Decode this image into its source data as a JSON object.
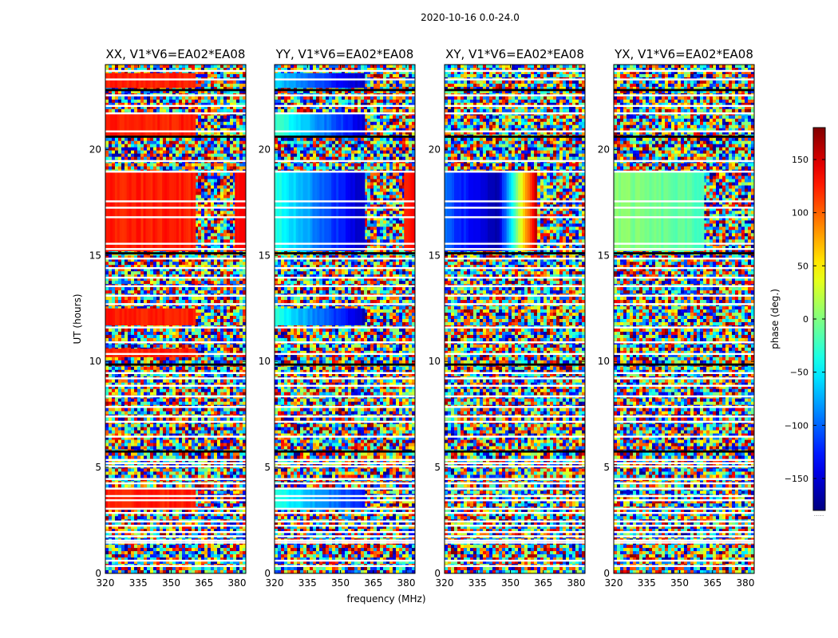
{
  "chart_data": {
    "type": "heatmap",
    "suptitle": "2020-10-16 0.0-24.0",
    "xlabel": "frequency (MHz)",
    "ylabel": "UT (hours)",
    "colorbar_label": "phase (deg.)",
    "colormap": "jet",
    "xlim": [
      320,
      384
    ],
    "ylim": [
      0,
      24
    ],
    "xticks": [
      320,
      335,
      350,
      365,
      380
    ],
    "yticks": [
      0,
      5,
      10,
      15,
      20
    ],
    "clim": [
      -180,
      180
    ],
    "cticks": [
      -150,
      -100,
      -50,
      0,
      50,
      100,
      150
    ],
    "cticklabels": [
      "−150",
      "−100",
      "−50",
      "0",
      "50",
      "100",
      "150"
    ],
    "colorbar_footer": ".....",
    "flagged_rows_hours": [
      0.35,
      0.6,
      1.45,
      1.55,
      1.75,
      1.95,
      2.25,
      2.45,
      2.85,
      3.05,
      3.45,
      3.65,
      4.0,
      4.25,
      4.45,
      5.05,
      5.2,
      5.35,
      5.75,
      6.45,
      7.15,
      7.4,
      7.85,
      8.35,
      8.85,
      9.2,
      9.45,
      10.35,
      10.9,
      11.6,
      12.7,
      13.1,
      13.55,
      13.95,
      14.4,
      14.85,
      15.3,
      15.55,
      16.8,
      17.25,
      17.55,
      18.95,
      19.45,
      20.85,
      21.7,
      22.05,
      22.55,
      23.3,
      23.7
    ],
    "black_rows_hours": [
      5.75,
      9.85,
      15.1,
      20.6,
      22.8
    ],
    "panels": [
      {
        "title": "XX, V1*V6=EA02*EA08",
        "coherent_blocks": [
          {
            "t0": 15.2,
            "t1": 19.0,
            "f0": 320,
            "f1": 361,
            "phase_start": 125,
            "phase_end": 125
          },
          {
            "t0": 11.7,
            "t1": 12.5,
            "f0": 320,
            "f1": 361,
            "phase_start": 125,
            "phase_end": 125
          },
          {
            "t0": 20.6,
            "t1": 21.7,
            "f0": 320,
            "f1": 361,
            "phase_start": 125,
            "phase_end": 125
          },
          {
            "t0": 22.9,
            "t1": 23.6,
            "f0": 320,
            "f1": 361,
            "phase_start": 125,
            "phase_end": 125
          },
          {
            "t0": 3.0,
            "t1": 4.0,
            "f0": 320,
            "f1": 361,
            "phase_start": 125,
            "phase_end": 125
          },
          {
            "t0": 10.2,
            "t1": 10.6,
            "f0": 320,
            "f1": 361,
            "phase_start": 125,
            "phase_end": 125
          },
          {
            "t0": 15.2,
            "t1": 19.0,
            "f0": 379,
            "f1": 384,
            "phase_start": 130,
            "phase_end": 130
          }
        ]
      },
      {
        "title": "YY, V1*V6=EA02*EA08",
        "coherent_blocks": [
          {
            "t0": 15.2,
            "t1": 19.0,
            "f0": 320,
            "f1": 361,
            "phase_start": -30,
            "phase_end": -160
          },
          {
            "t0": 11.7,
            "t1": 12.5,
            "f0": 320,
            "f1": 361,
            "phase_start": -30,
            "phase_end": -160
          },
          {
            "t0": 20.6,
            "t1": 21.7,
            "f0": 320,
            "f1": 361,
            "phase_start": -20,
            "phase_end": -150
          },
          {
            "t0": 22.9,
            "t1": 23.6,
            "f0": 320,
            "f1": 361,
            "phase_start": -60,
            "phase_end": -160
          },
          {
            "t0": 3.0,
            "t1": 4.0,
            "f0": 320,
            "f1": 361,
            "phase_start": -30,
            "phase_end": -130
          },
          {
            "t0": 15.2,
            "t1": 19.0,
            "f0": 379,
            "f1": 384,
            "phase_start": 130,
            "phase_end": 130
          }
        ]
      },
      {
        "title": "XY, V1*V6=EA02*EA08",
        "coherent_blocks": [
          {
            "t0": 15.2,
            "t1": 19.0,
            "f0": 320,
            "f1": 344,
            "phase_start": -100,
            "phase_end": -170
          },
          {
            "t0": 15.2,
            "t1": 19.0,
            "f0": 344,
            "f1": 362,
            "phase_start": -170,
            "phase_end": 170
          }
        ]
      },
      {
        "title": "YX, V1*V6=EA02*EA08",
        "coherent_blocks": [
          {
            "t0": 15.2,
            "t1": 19.0,
            "f0": 320,
            "f1": 361,
            "phase_start": 5,
            "phase_end": -20
          }
        ]
      }
    ]
  }
}
